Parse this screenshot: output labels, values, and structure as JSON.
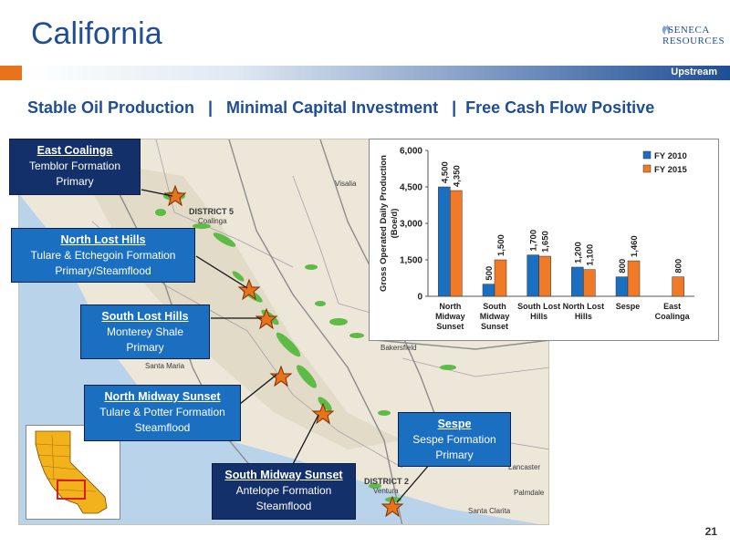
{
  "header": {
    "title": "California",
    "logo_line1": "SENECA",
    "logo_line2": "RESOURCES",
    "band_label": "Upstream",
    "subtitle": "Stable Oil Production   |   Minimal Capital Investment   |  Free Cash Flow Positive"
  },
  "callouts": [
    {
      "name": "East Coalinga",
      "line1": "Temblor Formation",
      "line2": "Primary"
    },
    {
      "name": "North Lost Hills",
      "line1": "Tulare & Etchegoin Formation",
      "line2": "Primary/Steamflood"
    },
    {
      "name": "South Lost Hills",
      "line1": "Monterey Shale",
      "line2": "Primary"
    },
    {
      "name": "North Midway Sunset",
      "line1": "Tulare & Potter Formation",
      "line2": "Steamflood"
    },
    {
      "name": "South Midway Sunset",
      "line1": "Antelope Formation",
      "line2": "Steamflood"
    },
    {
      "name": "Sespe",
      "line1": "Sespe Formation",
      "line2": "Primary"
    }
  ],
  "map_labels": {
    "district5": "DISTRICT 5",
    "coalinga": "Coalinga",
    "visalia": "Visalia",
    "bakersfield": "Bakersfield",
    "santa_maria": "Santa Maria",
    "district2": "DISTRICT 2",
    "ventura": "Ventura",
    "santa_clarita": "Santa Clarita",
    "palmdale": "Palmdale",
    "lancaster": "Lancaster"
  },
  "chart_data": {
    "type": "bar",
    "categories": [
      [
        "North",
        "Midway",
        "Sunset"
      ],
      [
        "South",
        "Midway",
        "Sunset"
      ],
      [
        "South Lost",
        "Hills"
      ],
      [
        "North Lost",
        "Hills"
      ],
      [
        "Sespe"
      ],
      [
        "East",
        "Coalinga"
      ]
    ],
    "series": [
      {
        "name": "FY 2010",
        "color": "#1b6fc0",
        "values": [
          4500,
          500,
          1700,
          1200,
          800,
          null
        ],
        "labels": [
          "4,500",
          "500",
          "1,700",
          "1,200",
          "800",
          ""
        ]
      },
      {
        "name": "FY 2015",
        "color": "#f07a28",
        "values": [
          4350,
          1500,
          1650,
          1100,
          1460,
          800
        ],
        "labels": [
          "4,350",
          "1,500",
          "1,650",
          "1,100",
          "1,460",
          "800"
        ]
      }
    ],
    "ylabel_line1": "Gross Operated Daily Production",
    "ylabel_line2": "(Boe/d)",
    "ylim": [
      0,
      6000
    ],
    "yticks": [
      0,
      1500,
      3000,
      4500,
      6000
    ],
    "ytick_labels": [
      "0",
      "1,500",
      "3,000",
      "4,500",
      "6,000"
    ],
    "legend_position": "top-right",
    "grid": false
  },
  "footer": {
    "page_number": "21"
  }
}
